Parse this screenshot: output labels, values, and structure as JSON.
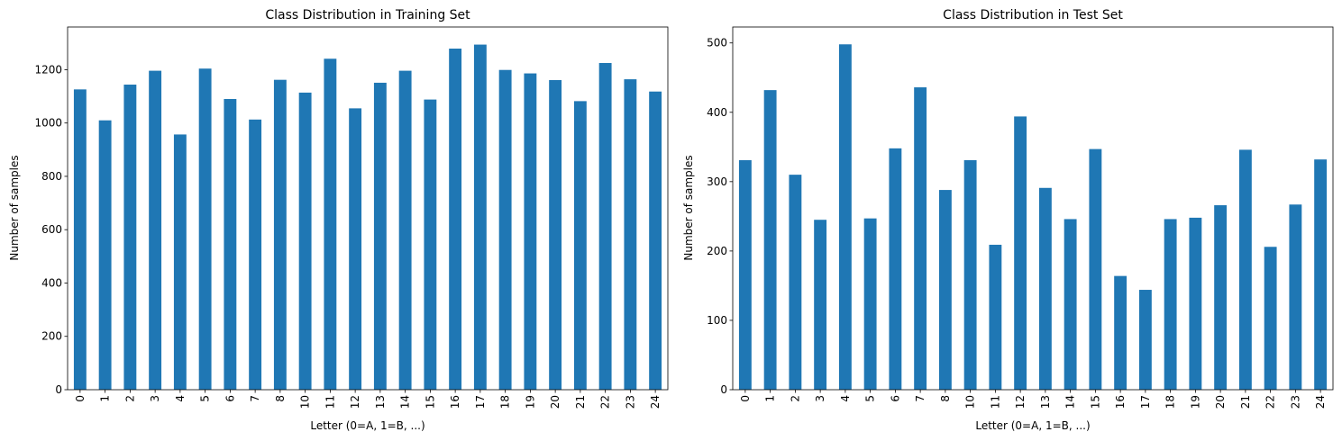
{
  "chart_data": [
    {
      "type": "bar",
      "title": "Class Distribution in Training Set",
      "xlabel": "Letter (0=A, 1=B, ...)",
      "ylabel": "Number of samples",
      "categories": [
        "0",
        "1",
        "2",
        "3",
        "4",
        "5",
        "6",
        "7",
        "8",
        "10",
        "11",
        "12",
        "13",
        "14",
        "15",
        "16",
        "17",
        "18",
        "19",
        "20",
        "21",
        "22",
        "23",
        "24"
      ],
      "values": [
        1126,
        1010,
        1144,
        1196,
        957,
        1204,
        1090,
        1013,
        1162,
        1114,
        1241,
        1055,
        1151,
        1196,
        1088,
        1279,
        1294,
        1199,
        1186,
        1161,
        1082,
        1225,
        1164,
        1118
      ],
      "ylim": [
        0,
        1360
      ],
      "yticks": [
        0,
        200,
        400,
        600,
        800,
        1000,
        1200
      ],
      "color": "#1f77b4",
      "grid": false,
      "legend": false
    },
    {
      "type": "bar",
      "title": "Class Distribution in Test Set",
      "xlabel": "Letter (0=A, 1=B, ...)",
      "ylabel": "Number of samples",
      "categories": [
        "0",
        "1",
        "2",
        "3",
        "4",
        "5",
        "6",
        "7",
        "8",
        "10",
        "11",
        "12",
        "13",
        "14",
        "15",
        "16",
        "17",
        "18",
        "19",
        "20",
        "21",
        "22",
        "23",
        "24"
      ],
      "values": [
        331,
        432,
        310,
        245,
        498,
        247,
        348,
        436,
        288,
        331,
        209,
        394,
        291,
        246,
        347,
        164,
        144,
        246,
        248,
        266,
        346,
        206,
        267,
        332
      ],
      "ylim": [
        0,
        523
      ],
      "yticks": [
        0,
        100,
        200,
        300,
        400,
        500
      ],
      "color": "#1f77b4",
      "grid": false,
      "legend": false
    }
  ]
}
